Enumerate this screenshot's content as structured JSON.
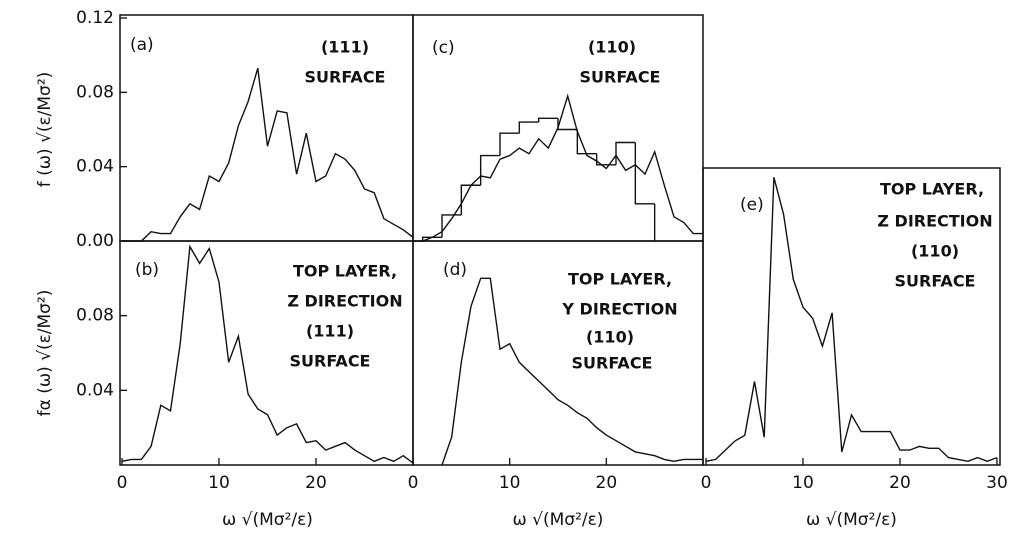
{
  "chart_data": [
    {
      "type": "line",
      "label": "(a)",
      "annotations": [
        "(111)",
        "SURFACE"
      ],
      "ylabel": "f (ω) √(ε/Mσ²)",
      "x": [
        0,
        1,
        2,
        3,
        4,
        5,
        6,
        7,
        8,
        9,
        10,
        11,
        12,
        13,
        14,
        15,
        16,
        17,
        18,
        19,
        20,
        21,
        22,
        23,
        24,
        25,
        26,
        27,
        28,
        29,
        30
      ],
      "values": [
        0,
        0,
        0,
        0.005,
        0.004,
        0.004,
        0.013,
        0.02,
        0.017,
        0.035,
        0.032,
        0.042,
        0.062,
        0.075,
        0.093,
        0.051,
        0.07,
        0.069,
        0.036,
        0.058,
        0.032,
        0.035,
        0.047,
        0.044,
        0.038,
        0.028,
        0.026,
        0.012,
        0.009,
        0.006,
        0.002
      ],
      "xlim": [
        0,
        30
      ],
      "ylim": [
        0,
        0.12
      ],
      "yticks": [
        {
          "value": 0,
          "label": "0.00"
        },
        0.04,
        0.08,
        0.12
      ],
      "color": "#111"
    },
    {
      "type": "line",
      "label": "(b)",
      "annotations": [
        "TOP LAYER,",
        "Z DIRECTION",
        "(111)",
        "SURFACE"
      ],
      "ylabel": "fα (ω) √(ε/Mσ²)",
      "xlabel": "ω √(Mσ²/ε)",
      "x": [
        0,
        1,
        2,
        3,
        4,
        5,
        6,
        7,
        8,
        9,
        10,
        11,
        12,
        13,
        14,
        15,
        16,
        17,
        18,
        19,
        20,
        21,
        22,
        23,
        24,
        25,
        26,
        27,
        28,
        29,
        30
      ],
      "values": [
        0.002,
        0.003,
        0.003,
        0.01,
        0.032,
        0.029,
        0.065,
        0.117,
        0.108,
        0.116,
        0.098,
        0.055,
        0.069,
        0.038,
        0.03,
        0.027,
        0.016,
        0.02,
        0.022,
        0.012,
        0.013,
        0.008,
        0.01,
        0.012,
        0.008,
        0.005,
        0.002,
        0.004,
        0.002,
        0.005,
        0.001
      ],
      "xlim": [
        0,
        30
      ],
      "ylim": [
        0,
        0.12
      ],
      "yticks": [
        0.04,
        0.08
      ],
      "xticks": [
        0,
        10,
        20
      ],
      "color": "#111"
    },
    {
      "type": "line",
      "label": "(c)",
      "annotations": [
        "(110)",
        "SURFACE"
      ],
      "x": [
        0,
        1,
        2,
        3,
        4,
        5,
        6,
        7,
        8,
        9,
        10,
        11,
        12,
        13,
        14,
        15,
        16,
        17,
        18,
        19,
        20,
        21,
        22,
        23,
        24,
        25,
        26,
        27,
        28,
        29,
        30
      ],
      "values": [
        0,
        0,
        0.002,
        0.005,
        0.012,
        0.02,
        0.03,
        0.035,
        0.034,
        0.044,
        0.046,
        0.05,
        0.047,
        0.055,
        0.05,
        0.061,
        0.078,
        0.059,
        0.046,
        0.043,
        0.039,
        0.046,
        0.038,
        0.041,
        0.036,
        0.048,
        0.03,
        0.013,
        0.01,
        0.004,
        0.004
      ],
      "histogram": {
        "bins": [
          1,
          3,
          5,
          7,
          9,
          11,
          13,
          15,
          17,
          19,
          21,
          23,
          25
        ],
        "counts": [
          0.002,
          0.014,
          0.03,
          0.046,
          0.058,
          0.064,
          0.066,
          0.06,
          0.047,
          0.041,
          0.053,
          0.02
        ]
      },
      "xlim": [
        0,
        30
      ],
      "ylim": [
        0,
        0.12
      ],
      "color": "#111"
    },
    {
      "type": "line",
      "label": "(d)",
      "annotations": [
        "TOP LAYER,",
        "Y DIRECTION",
        "(110)",
        "SURFACE"
      ],
      "xlabel": "ω √(Mσ²/ε)",
      "x": [
        0,
        1,
        2,
        3,
        4,
        5,
        6,
        7,
        8,
        9,
        10,
        11,
        12,
        13,
        14,
        15,
        16,
        17,
        18,
        19,
        20,
        21,
        22,
        23,
        24,
        25,
        26,
        27,
        28,
        29,
        30
      ],
      "values": [
        null,
        null,
        null,
        0,
        0.015,
        0.055,
        0.085,
        0.1,
        0.1,
        0.062,
        0.065,
        0.055,
        0.05,
        0.045,
        0.04,
        0.035,
        0.032,
        0.028,
        0.025,
        0.02,
        0.016,
        0.013,
        0.01,
        0.007,
        0.006,
        0.005,
        0.003,
        0.002,
        0.003,
        0.003,
        0.003
      ],
      "xlim": [
        0,
        30
      ],
      "ylim": [
        0,
        0.12
      ],
      "xticks": [
        0,
        10,
        20
      ],
      "color": "#111"
    },
    {
      "type": "line",
      "label": "(e)",
      "annotations": [
        "TOP LAYER,",
        "Z DIRECTION",
        "(110)",
        "SURFACE"
      ],
      "xlabel": "ω √(Mσ²/ε)",
      "x": [
        0,
        1,
        2,
        3,
        4,
        5,
        6,
        7,
        8,
        9,
        10,
        11,
        12,
        13,
        14,
        15,
        16,
        17,
        18,
        19,
        20,
        21,
        22,
        23,
        24,
        25,
        26,
        27,
        28,
        29,
        30
      ],
      "values": [
        0.002,
        0.003,
        0.008,
        0.013,
        0.016,
        0.045,
        0.015,
        0.155,
        0.135,
        0.1,
        0.085,
        0.079,
        0.064,
        0.082,
        0.007,
        0.027,
        0.018,
        0.018,
        0.018,
        0.018,
        0.008,
        0.008,
        0.01,
        0.009,
        0.009,
        0.004,
        0.003,
        0.002,
        0.004,
        0.002,
        0.004
      ],
      "xlim": [
        0,
        30
      ],
      "ylim": [
        0,
        0.16
      ],
      "xticks": [
        0,
        10,
        20,
        30
      ],
      "color": "#111"
    }
  ]
}
